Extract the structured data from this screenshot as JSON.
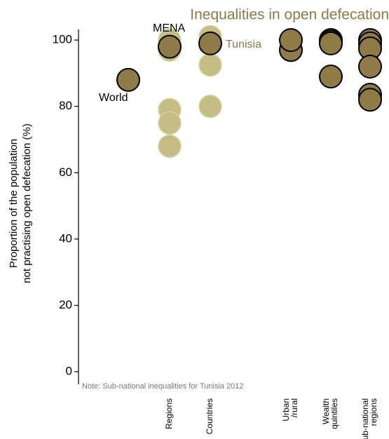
{
  "chart_data": {
    "type": "strip",
    "title": "Inequalities in open defecation",
    "ylabel": [
      "Proportion of the population",
      "not practising open defecation (%)"
    ],
    "note": "Note: Sub-national inequalities for Tunisia  2012",
    "categories": [
      null,
      "Regions",
      "Countries",
      [
        "Urban",
        "/rural"
      ],
      [
        "Wealth",
        "quintiles"
      ],
      [
        "Sub-national",
        "regions"
      ]
    ],
    "ylim": [
      -3.8,
      103.2
    ],
    "yticks": [
      0,
      20,
      40,
      60,
      80,
      100
    ],
    "title_color": "#8c7a45",
    "series": [
      {
        "color": "#c4bd84",
        "values": [
          [],
          [
            100,
            97,
            79,
            75,
            68
          ],
          [
            101,
            99,
            92.5,
            80
          ],
          [],
          [],
          []
        ]
      },
      {
        "color": "#8f7b47",
        "values": [
          [],
          [],
          [],
          [
            97,
            100
          ],
          [
            100,
            99.5,
            99,
            89
          ],
          [
            100,
            99,
            97.5,
            92,
            83.5,
            82
          ]
        ]
      },
      {
        "name": "World",
        "color": "#8f7b47",
        "label_color": "#000000",
        "values": [
          [
            88
          ],
          [],
          [],
          [],
          [],
          []
        ]
      },
      {
        "name": "MENA",
        "color": "#8f7b47",
        "label_color": "#000000",
        "values": [
          [],
          [
            98
          ],
          [],
          [],
          [],
          []
        ]
      },
      {
        "name": "Tunisia",
        "color": "#8f7b47",
        "label_color": "#8c7a45",
        "values": [
          [],
          [],
          [
            99
          ],
          [],
          [],
          []
        ]
      }
    ]
  }
}
